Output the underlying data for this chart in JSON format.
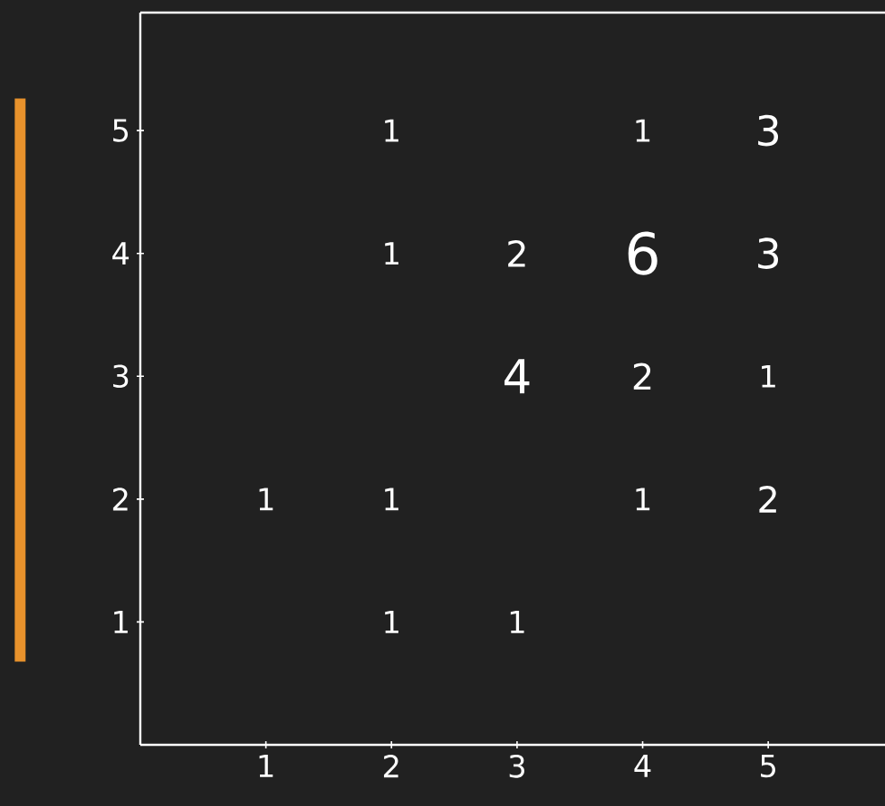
{
  "chart_data": {
    "type": "heatmap",
    "categories": [
      "1",
      "2",
      "3",
      "4",
      "5"
    ],
    "y_categories": [
      "5",
      "4",
      "3",
      "2",
      "1"
    ],
    "cells": [
      [
        null,
        1,
        null,
        1,
        3
      ],
      [
        null,
        1,
        2,
        6,
        3
      ],
      [
        null,
        null,
        4,
        2,
        1
      ],
      [
        1,
        1,
        null,
        1,
        2
      ],
      [
        null,
        1,
        1,
        null,
        null
      ]
    ],
    "data_labels": true,
    "grid": false
  }
}
